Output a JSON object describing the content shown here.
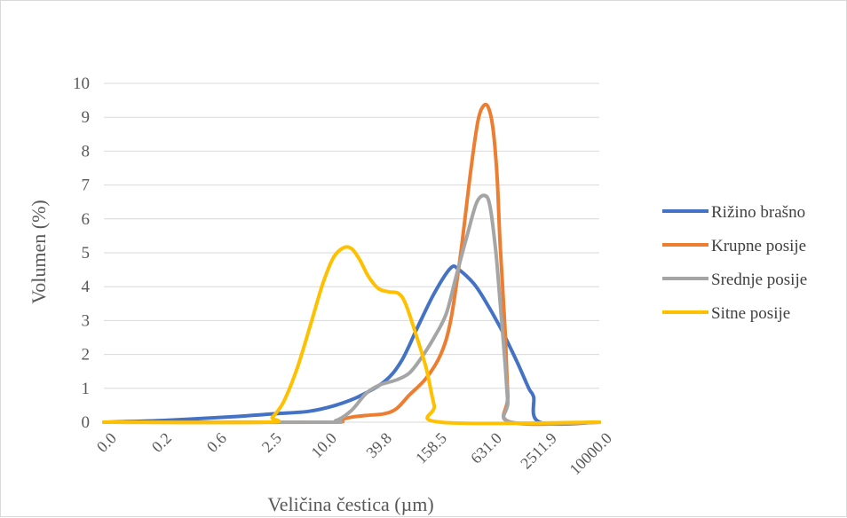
{
  "chart_data": {
    "type": "line",
    "title": "",
    "xlabel": "Veličina čestica (µm)",
    "ylabel": "Volumen (%)",
    "ylim": [
      0,
      10
    ],
    "yticks": [
      "0",
      "1",
      "2",
      "3",
      "4",
      "5",
      "6",
      "7",
      "8",
      "9",
      "10"
    ],
    "xscale": "log",
    "xlim": [
      0.01,
      10000
    ],
    "xticks": [
      "0.0",
      "0.2",
      "0.6",
      "2.5",
      "10.0",
      "39.8",
      "158.5",
      "631.0",
      "2511.9",
      "10000.0"
    ],
    "grid": true,
    "legend_position": "right",
    "series": [
      {
        "name": "Rižino brašno",
        "color": "#4472c4",
        "points": [
          [
            0.01,
            0
          ],
          [
            0.05,
            0.05
          ],
          [
            0.3,
            0.15
          ],
          [
            1.2,
            0.25
          ],
          [
            3,
            0.32
          ],
          [
            6,
            0.48
          ],
          [
            12,
            0.75
          ],
          [
            25,
            1.2
          ],
          [
            40,
            1.8
          ],
          [
            63,
            2.8
          ],
          [
            100,
            3.8
          ],
          [
            158.5,
            4.55
          ],
          [
            200,
            4.5
          ],
          [
            300,
            4.1
          ],
          [
            400,
            3.65
          ],
          [
            631,
            2.8
          ],
          [
            1000,
            1.8
          ],
          [
            1400,
            1.0
          ],
          [
            1600,
            0.75
          ],
          [
            1900,
            0
          ],
          [
            10000,
            0
          ]
        ]
      },
      {
        "name": "Krupne posije",
        "color": "#ed7d31",
        "points": [
          [
            0.01,
            0
          ],
          [
            4.5,
            0
          ],
          [
            6.5,
            0.05
          ],
          [
            10,
            0.15
          ],
          [
            15,
            0.2
          ],
          [
            25,
            0.25
          ],
          [
            35,
            0.4
          ],
          [
            50,
            0.8
          ],
          [
            80,
            1.3
          ],
          [
            120,
            2.0
          ],
          [
            158.5,
            3.0
          ],
          [
            210,
            5.0
          ],
          [
            280,
            7.5
          ],
          [
            340,
            8.9
          ],
          [
            400,
            9.35
          ],
          [
            460,
            9.25
          ],
          [
            520,
            8.6
          ],
          [
            580,
            7.2
          ],
          [
            631,
            5.2
          ],
          [
            720,
            2.8
          ],
          [
            780,
            0.8
          ],
          [
            850,
            0
          ],
          [
            10000,
            0
          ]
        ]
      },
      {
        "name": "Srednje posije",
        "color": "#a5a5a5",
        "points": [
          [
            0.01,
            0
          ],
          [
            4.2,
            0
          ],
          [
            6.5,
            0.05
          ],
          [
            10,
            0.35
          ],
          [
            15,
            0.85
          ],
          [
            22,
            1.1
          ],
          [
            35,
            1.25
          ],
          [
            50,
            1.45
          ],
          [
            70,
            1.9
          ],
          [
            100,
            2.5
          ],
          [
            140,
            3.2
          ],
          [
            180,
            4.2
          ],
          [
            250,
            5.5
          ],
          [
            330,
            6.5
          ],
          [
            420,
            6.68
          ],
          [
            480,
            6.3
          ],
          [
            560,
            5.0
          ],
          [
            631,
            3.5
          ],
          [
            720,
            1.8
          ],
          [
            780,
            0.6
          ],
          [
            850,
            0
          ],
          [
            10000,
            0
          ]
        ]
      },
      {
        "name": "Sitne posije",
        "color": "#ffc000",
        "points": [
          [
            0.01,
            0
          ],
          [
            0.9,
            0
          ],
          [
            1.1,
            0.15
          ],
          [
            1.5,
            0.6
          ],
          [
            2.2,
            1.6
          ],
          [
            3.2,
            2.9
          ],
          [
            4.5,
            4.1
          ],
          [
            6,
            4.85
          ],
          [
            8,
            5.15
          ],
          [
            10,
            5.12
          ],
          [
            12.5,
            4.8
          ],
          [
            16,
            4.3
          ],
          [
            21,
            3.95
          ],
          [
            28,
            3.85
          ],
          [
            37,
            3.8
          ],
          [
            45,
            3.5
          ],
          [
            60,
            2.6
          ],
          [
            80,
            1.6
          ],
          [
            100,
            0.5
          ],
          [
            120,
            0
          ],
          [
            10000,
            0
          ]
        ]
      }
    ]
  }
}
